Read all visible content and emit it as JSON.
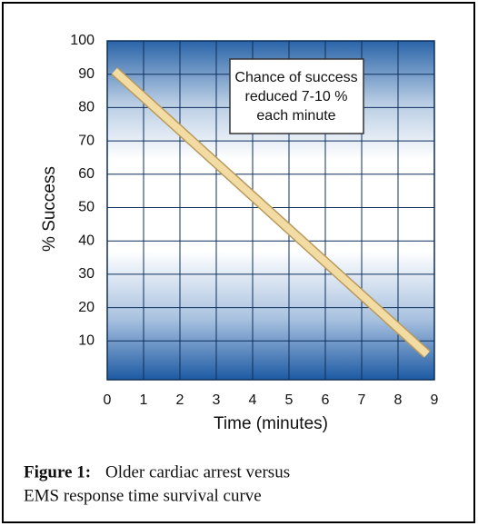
{
  "chart_data": {
    "type": "line",
    "x": [
      0.2,
      8.8
    ],
    "series": [
      {
        "color": "#f3dca4",
        "values": [
          91,
          6
        ]
      }
    ],
    "xlabel": "Time (minutes)",
    "ylabel": "% Success",
    "xlim": [
      0,
      9
    ],
    "xticks": [
      0,
      1,
      2,
      3,
      4,
      5,
      6,
      7,
      8,
      9
    ],
    "ylim": [
      0,
      100
    ],
    "yticks": [
      10,
      20,
      30,
      40,
      50,
      60,
      70,
      80,
      90,
      100
    ],
    "grid": true,
    "annotation": [
      "Chance of success",
      "reduced 7-10 %",
      "each minute"
    ]
  },
  "caption": {
    "label": "Figure 1:",
    "lines": [
      "Older cardiac arrest versus",
      "EMS response time survival curve"
    ]
  }
}
